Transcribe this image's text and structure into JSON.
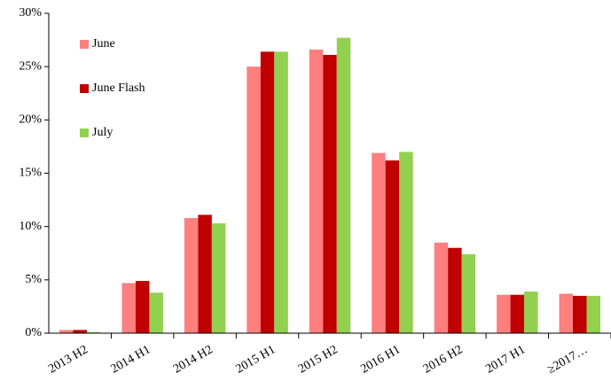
{
  "chart_data": {
    "type": "bar",
    "categories": [
      "2013 H2",
      "2014 H1",
      "2014 H2",
      "2015 H1",
      "2015 H2",
      "2016 H1",
      "2016 H2",
      "2017 H1",
      "≥2017…"
    ],
    "series": [
      {
        "name": "June",
        "color": "#ff7f7f",
        "values": [
          0.3,
          4.7,
          10.8,
          25.0,
          26.6,
          16.9,
          8.5,
          3.6,
          3.7
        ]
      },
      {
        "name": "June Flash",
        "color": "#c00000",
        "values": [
          0.3,
          4.9,
          11.1,
          26.4,
          26.1,
          16.2,
          8.0,
          3.6,
          3.5
        ]
      },
      {
        "name": "July",
        "color": "#92d050",
        "values": [
          0.1,
          3.8,
          10.3,
          26.4,
          27.7,
          17.0,
          7.4,
          3.9,
          3.5
        ]
      }
    ],
    "ylim": [
      0,
      30
    ],
    "yticks": [
      {
        "value": 0,
        "label": "0%"
      },
      {
        "value": 5,
        "label": "5%"
      },
      {
        "value": 10,
        "label": "10%"
      },
      {
        "value": 15,
        "label": "15%"
      },
      {
        "value": 20,
        "label": "20%"
      },
      {
        "value": 25,
        "label": "25%"
      },
      {
        "value": 30,
        "label": "30%"
      }
    ],
    "grid": false,
    "legend": "upper left"
  }
}
